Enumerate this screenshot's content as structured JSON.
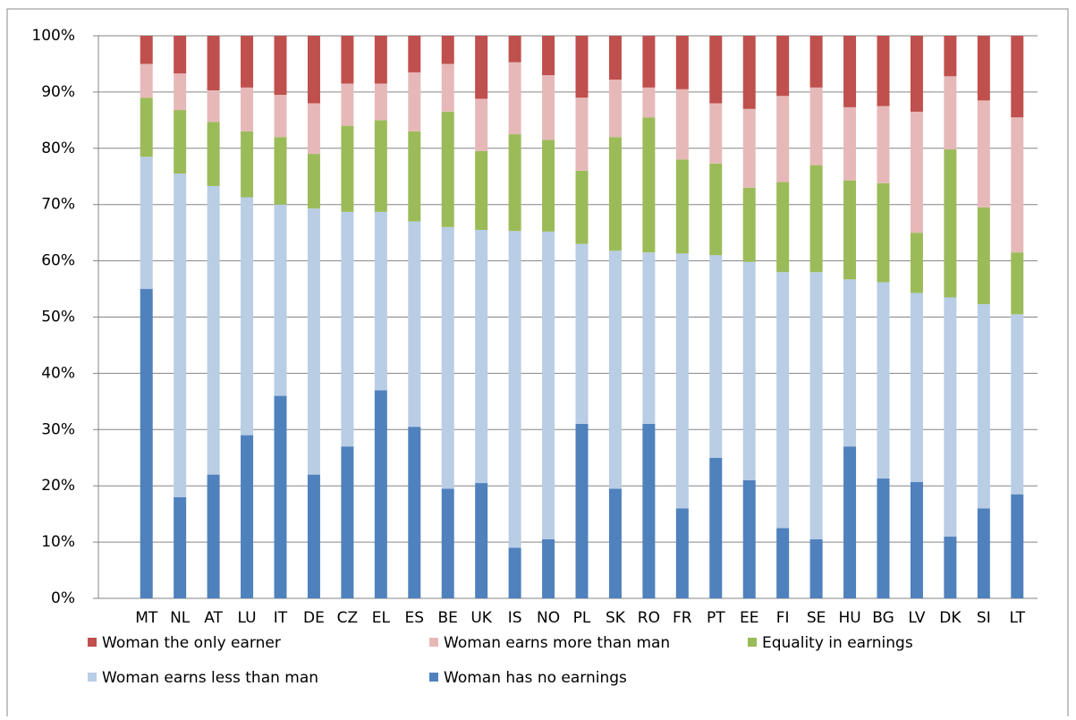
{
  "chart_data": {
    "type": "stacked_bar",
    "categories": [
      "MT",
      "NL",
      "AT",
      "LU",
      "IT",
      "DE",
      "CZ",
      "EL",
      "ES",
      "BE",
      "UK",
      "IS",
      "NO",
      "PL",
      "SK",
      "RO",
      "FR",
      "PT",
      "EE",
      "FI",
      "SE",
      "HU",
      "BG",
      "LV",
      "DK",
      "SI",
      "LT"
    ],
    "series": [
      {
        "name": "Woman the only earner",
        "color": "#c0504d",
        "values": [
          5,
          6.7,
          9.7,
          9.2,
          10.5,
          12,
          8.5,
          8.5,
          6.5,
          5,
          11.2,
          4.7,
          7,
          11,
          7.8,
          9.2,
          9.5,
          12,
          13,
          10.7,
          9.2,
          12.7,
          12.5,
          13.5,
          7.2,
          11.5,
          14.5
        ]
      },
      {
        "name": "Woman earns more than man",
        "color": "#e6b9b8",
        "values": [
          6,
          6.5,
          5.6,
          7.8,
          7.5,
          9,
          7.5,
          6.5,
          10.5,
          8.5,
          9.3,
          12.8,
          11.5,
          13,
          10.2,
          5.3,
          12.5,
          10.7,
          14,
          15.3,
          13.8,
          13,
          13.7,
          21.5,
          13,
          19,
          24
        ]
      },
      {
        "name": "Equality in earnings",
        "color": "#9bbb59",
        "values": [
          10.5,
          11.3,
          11.4,
          11.7,
          12,
          9.7,
          15.3,
          16.3,
          16,
          20.5,
          14,
          17.2,
          16.3,
          13,
          20.2,
          24,
          16.7,
          16.3,
          13.2,
          16,
          19,
          17.6,
          17.6,
          10.7,
          26.3,
          17.2,
          11
        ]
      },
      {
        "name": "Woman earns less than man",
        "color": "#b9cde5",
        "values": [
          23.5,
          57.5,
          51.3,
          42.3,
          34,
          47.3,
          41.7,
          31.7,
          36.5,
          46.5,
          45,
          56.3,
          54.7,
          32,
          42.3,
          30.5,
          45.3,
          36,
          38.8,
          45.5,
          47.5,
          29.7,
          34.9,
          33.6,
          42.5,
          36.3,
          32
        ]
      },
      {
        "name": "Woman has no earnings",
        "color": "#4f81bd",
        "values": [
          55,
          18,
          22,
          29,
          36,
          22,
          27,
          37,
          30.5,
          19.5,
          20.5,
          9,
          10.5,
          31,
          19.5,
          31,
          16,
          25,
          21,
          12.5,
          10.5,
          27,
          21.3,
          20.7,
          11,
          16,
          18.5
        ]
      }
    ],
    "ylim": [
      0,
      100
    ],
    "yticks": [
      {
        "value": 0,
        "label": "0%"
      },
      {
        "value": 10,
        "label": "10%"
      },
      {
        "value": 20,
        "label": "20%"
      },
      {
        "value": 30,
        "label": "30%"
      },
      {
        "value": 40,
        "label": "40%"
      },
      {
        "value": 50,
        "label": "50%"
      },
      {
        "value": 60,
        "label": "60%"
      },
      {
        "value": 70,
        "label": "70%"
      },
      {
        "value": 80,
        "label": "80%"
      },
      {
        "value": 90,
        "label": "90%"
      },
      {
        "value": 100,
        "label": "100%"
      }
    ],
    "grid": true
  }
}
